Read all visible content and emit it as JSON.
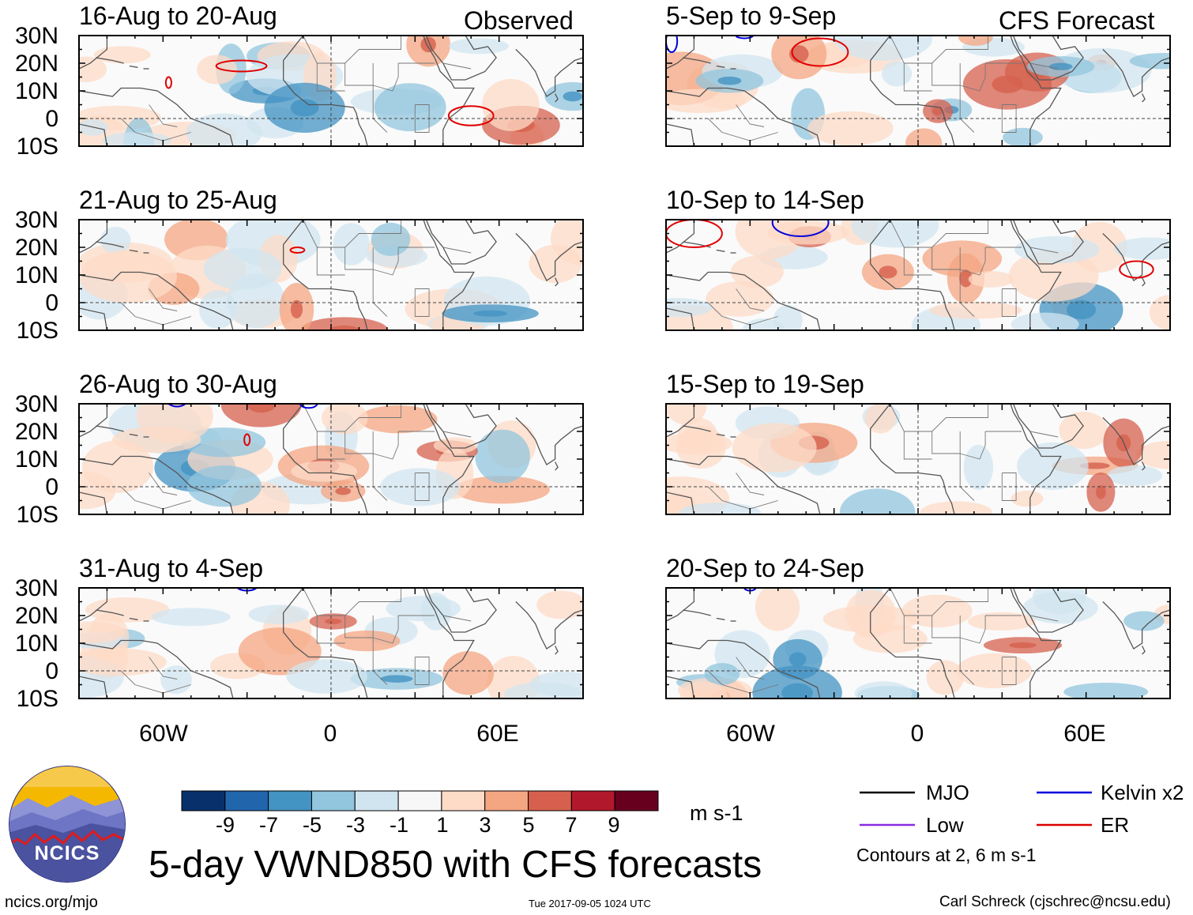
{
  "header": {
    "left_tag": "Observed",
    "right_tag": "CFS Forecast"
  },
  "panels": {
    "observed": [
      {
        "title": "16-Aug to 20-Aug"
      },
      {
        "title": "21-Aug to 25-Aug"
      },
      {
        "title": "26-Aug to 30-Aug"
      },
      {
        "title": "31-Aug to 4-Sep"
      }
    ],
    "forecast": [
      {
        "title": "5-Sep to 9-Sep"
      },
      {
        "title": "10-Sep to 14-Sep"
      },
      {
        "title": "15-Sep to 19-Sep"
      },
      {
        "title": "20-Sep to 24-Sep"
      }
    ]
  },
  "axes": {
    "lat_labels": [
      "30N",
      "20N",
      "10N",
      "0",
      "10S"
    ],
    "lon_labels": [
      "60W",
      "0",
      "60E"
    ]
  },
  "colorbar": {
    "labels": [
      "-9",
      "-7",
      "-5",
      "-3",
      "-1",
      "1",
      "3",
      "5",
      "7",
      "9"
    ],
    "colors": [
      "#08306b",
      "#2166ac",
      "#4393c3",
      "#92c5de",
      "#d1e5f0",
      "#f7f7f7",
      "#fddbc7",
      "#f4a582",
      "#d6604d",
      "#b2182b",
      "#67001f"
    ],
    "units": "m s-1"
  },
  "title": "5-day VWND850 with CFS forecasts",
  "legend": {
    "items": [
      {
        "label": "MJO",
        "color": "#000000"
      },
      {
        "label": "Kelvin x2",
        "color": "#0000dd"
      },
      {
        "label": "Low",
        "color": "#8a2be2"
      },
      {
        "label": "ER",
        "color": "#dd0000"
      }
    ],
    "note": "Contours at 2, 6 m s-1"
  },
  "logo": {
    "text": "NCICS"
  },
  "footer": {
    "url": "ncics.org/mjo",
    "timestamp": "Tue 2017-09-05 1024 UTC",
    "credit": "Carl Schreck (cjschrec@ncsu.edu)"
  }
}
